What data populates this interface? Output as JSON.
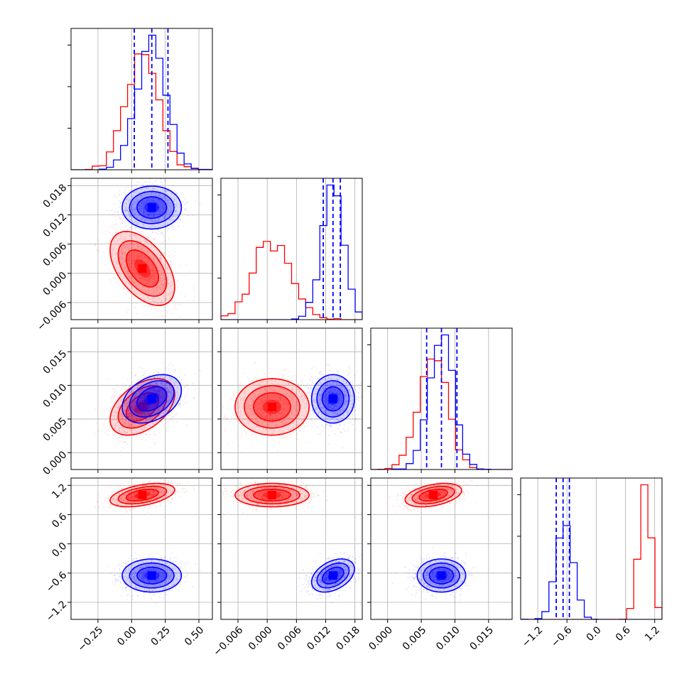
{
  "chart_data": {
    "type": "corner",
    "colors": {
      "series_a": "#0000ff",
      "series_b": "#ff0000",
      "grid": "#b0b0b0"
    },
    "series": [
      {
        "color": "#0000ff",
        "means": [
          0.15,
          0.0135,
          0.008,
          -0.65
        ],
        "sds": [
          0.11,
          0.0022,
          0.0018,
          0.17
        ],
        "quantiles": [
          [
            0.02,
            0.15,
            0.27
          ],
          [
            0.0115,
            0.0135,
            0.015
          ],
          [
            0.0058,
            0.008,
            0.0103
          ],
          [
            -0.82,
            -0.68,
            -0.55
          ]
        ]
      },
      {
        "color": "#ff0000",
        "means": [
          0.08,
          0.001,
          0.0068,
          1.0
        ],
        "sds": [
          0.12,
          0.0038,
          0.0021,
          0.12
        ],
        "quantiles": []
      }
    ],
    "correlations": {
      "a": [
        [
          1,
          0,
          0.35,
          0
        ],
        [
          0,
          1,
          0,
          0.4
        ],
        [
          0.35,
          0,
          1,
          0
        ],
        [
          0,
          0.4,
          0,
          1
        ]
      ],
      "b": [
        [
          1,
          -0.5,
          0.45,
          0.45
        ],
        [
          -0.5,
          1,
          0,
          0
        ],
        [
          0.45,
          0,
          1,
          0.4
        ],
        [
          0.45,
          0,
          0.4,
          1
        ]
      ]
    },
    "axes": [
      {
        "lim": [
          -0.45,
          0.6
        ],
        "ticks": [
          -0.25,
          0.0,
          0.25,
          0.5
        ],
        "tick_labels": [
          "−0.25",
          "0.00",
          "0.25",
          "0.50"
        ]
      },
      {
        "lim": [
          -0.0095,
          0.0195
        ],
        "ticks": [
          -0.006,
          0.0,
          0.006,
          0.012,
          0.018
        ],
        "tick_labels": [
          "−0.006",
          "0.000",
          "0.006",
          "0.012",
          "0.018"
        ]
      },
      {
        "lim": [
          -0.0025,
          0.0185
        ],
        "ticks": [
          0.0,
          0.005,
          0.01,
          0.015
        ],
        "tick_labels": [
          "0.000",
          "0.005",
          "0.010",
          "0.015"
        ]
      },
      {
        "lim": [
          -1.55,
          1.35
        ],
        "ticks": [
          -1.2,
          -0.6,
          0.0,
          0.6,
          1.2
        ],
        "tick_labels": [
          "−1.2",
          "−0.6",
          "0.0",
          "0.6",
          "1.2"
        ]
      }
    ],
    "grid": true,
    "title": "",
    "xlabel": "",
    "ylabel": ""
  }
}
